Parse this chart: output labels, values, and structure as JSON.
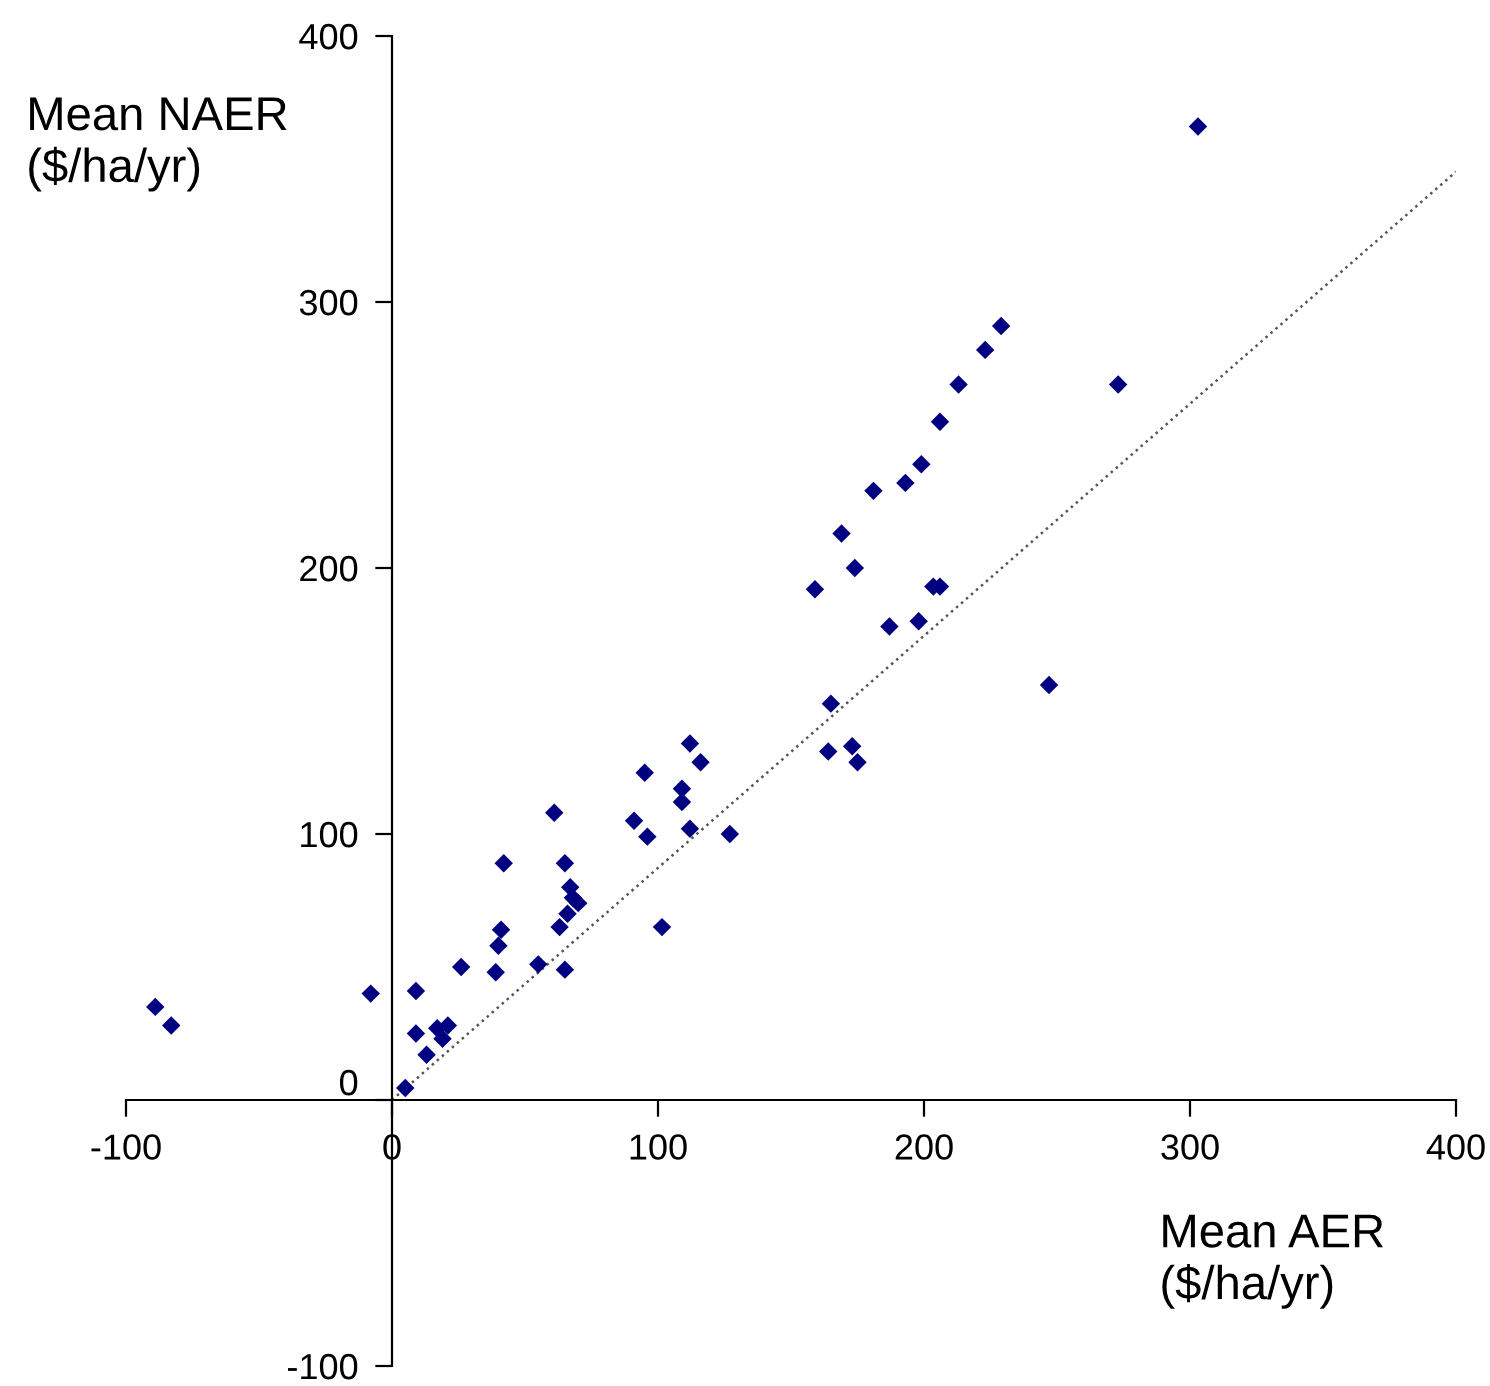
{
  "chart_data": {
    "type": "scatter",
    "xlabel": "Mean AER\n($/ha/yr)",
    "ylabel": "Mean NAER\n($/ha/yr)",
    "xlim": [
      -100,
      400
    ],
    "ylim": [
      -100,
      400
    ],
    "xticks": [
      -100,
      0,
      100,
      200,
      300,
      400
    ],
    "yticks": [
      -100,
      0,
      100,
      200,
      300,
      400
    ],
    "grid": false,
    "legend": false,
    "marker": "diamond",
    "series": [
      {
        "color": "#000080",
        "x": [
          -89,
          -83,
          -8,
          5,
          9,
          9,
          13,
          17,
          19,
          21,
          26,
          39,
          40,
          41,
          42,
          55,
          61,
          63,
          65,
          65,
          66,
          67,
          68,
          70,
          91,
          95,
          96,
          101.5,
          109,
          109,
          112,
          116,
          112,
          127,
          229,
          223,
          213,
          273,
          206,
          199,
          193,
          181,
          169,
          174,
          159,
          203.5,
          206,
          187,
          198,
          247,
          165,
          164,
          173,
          175,
          303
        ],
        "values": [
          35,
          28,
          40,
          4.5,
          41,
          25,
          17,
          27,
          23,
          28,
          50,
          48,
          58,
          64,
          89,
          51,
          108,
          65,
          89,
          49,
          70,
          80,
          76,
          74,
          105,
          123,
          99,
          65,
          117,
          112,
          134,
          127,
          102,
          100,
          291,
          282,
          269,
          269,
          255,
          239,
          232,
          229,
          213,
          200,
          192,
          193,
          193,
          178,
          180,
          156,
          149,
          131,
          133,
          127,
          366
        ]
      },
      {
        "type": "line",
        "color": "#555555",
        "line_style": "dotted",
        "marker": "none",
        "x": [
          0,
          400
        ],
        "values": [
          0,
          349
        ]
      }
    ]
  }
}
